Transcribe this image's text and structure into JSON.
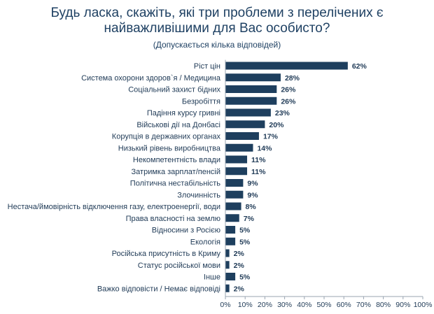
{
  "chart_data": {
    "type": "bar",
    "orientation": "horizontal",
    "title": "Будь ласка, скажіть, які три проблеми з перелічених є найважливішими для Вас особисто?",
    "title_lines": [
      "Будь ласка, скажіть, які три проблеми з перелічених є",
      "найважливішими для Вас особисто?"
    ],
    "subtitle": "(Допускається кілька відповідей)",
    "categories": [
      "Ріст цін",
      "Система охорони здоров`я / Медицина",
      "Соціальний захист бідних",
      "Безробіття",
      "Падіння курсу гривні",
      "Військові дії на Донбасі",
      "Корупція в державних органах",
      "Низький рівень виробництва",
      "Некомпетентність влади",
      "Затримка зарплат/пенсій",
      "Політична нестабільність",
      "Злочинність",
      "Нестача/ймовірність відключення газу, електроенергії, води",
      "Права власності на землю",
      "Відносини з Росією",
      "Екологія",
      "Російська присутність в Криму",
      "Статус російської мови",
      "Інше",
      "Важко відповісти / Немає відповіді"
    ],
    "values": [
      62,
      28,
      26,
      26,
      23,
      20,
      17,
      14,
      11,
      11,
      9,
      9,
      8,
      7,
      5,
      5,
      2,
      2,
      5,
      2
    ],
    "value_labels": [
      "62%",
      "28%",
      "26%",
      "26%",
      "23%",
      "20%",
      "17%",
      "14%",
      "11%",
      "11%",
      "9%",
      "9%",
      "8%",
      "7%",
      "5%",
      "5%",
      "2%",
      "2%",
      "5%",
      "2%"
    ],
    "xlim": [
      0,
      100
    ],
    "x_ticks": [
      0,
      10,
      20,
      30,
      40,
      50,
      60,
      70,
      80,
      90,
      100
    ],
    "x_tick_labels": [
      "0%",
      "10%",
      "20%",
      "30%",
      "40%",
      "50%",
      "60%",
      "70%",
      "80%",
      "90%",
      "100%"
    ],
    "xlabel": "",
    "ylabel": "",
    "grid": false,
    "legend": "none",
    "bar_color": "#1e3f5e",
    "text_color": "#1f3a56",
    "axis_color": "#9aa6b2"
  }
}
